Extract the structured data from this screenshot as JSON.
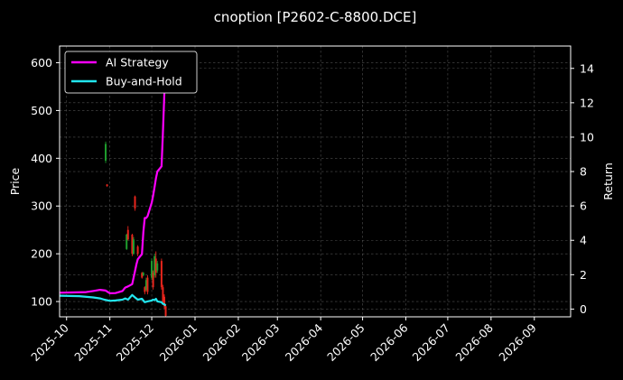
{
  "chart_data": {
    "type": "line",
    "title": "cnoption [P2602-C-8800.DCE]",
    "xlabel": "",
    "ylabel": "Price",
    "y2label": "Return",
    "xlim": [
      "2025-09-26",
      "2026-09-27"
    ],
    "ylim": [
      68,
      635
    ],
    "y2lim": [
      -0.45,
      15.3
    ],
    "y_ticks": [
      100,
      200,
      300,
      400,
      500,
      600
    ],
    "y2_ticks": [
      0,
      2,
      4,
      6,
      8,
      10,
      12,
      14
    ],
    "x_ticks": [
      "2025-10",
      "2025-11",
      "2025-12",
      "2026-01",
      "2026-02",
      "2026-03",
      "2026-04",
      "2026-05",
      "2026-06",
      "2026-07",
      "2026-08",
      "2026-09"
    ],
    "x_tick_dates": [
      "2025-10-01",
      "2025-11-01",
      "2025-12-01",
      "2026-01-01",
      "2026-02-01",
      "2026-03-01",
      "2026-04-01",
      "2026-05-01",
      "2026-06-01",
      "2026-07-01",
      "2026-08-01",
      "2026-09-01"
    ],
    "grid": true,
    "legend_position": "top-left",
    "colors": {
      "ai": "#ff00ff",
      "bh": "#22e5ee",
      "up": "#1f9e2e",
      "down": "#e8251c"
    },
    "series": [
      {
        "name": "AI Strategy",
        "axis": "right",
        "x": [
          "2025-09-26",
          "2025-10-05",
          "2025-10-15",
          "2025-10-20",
          "2025-10-25",
          "2025-10-29",
          "2025-11-01",
          "2025-11-05",
          "2025-11-10",
          "2025-11-12",
          "2025-11-14",
          "2025-11-17",
          "2025-11-19",
          "2025-11-20",
          "2025-11-21",
          "2025-11-24",
          "2025-11-25",
          "2025-11-26",
          "2025-11-27",
          "2025-11-28",
          "2025-12-01",
          "2025-12-02",
          "2025-12-03",
          "2025-12-04",
          "2025-12-05",
          "2025-12-08",
          "2025-12-09",
          "2025-12-10",
          "2025-12-11",
          "2025-12-12"
        ],
        "values": [
          0.95,
          0.97,
          0.99,
          1.05,
          1.12,
          1.08,
          0.92,
          0.93,
          1.05,
          1.25,
          1.32,
          1.45,
          2.2,
          2.6,
          2.9,
          3.2,
          4.5,
          5.3,
          5.3,
          5.4,
          6.2,
          6.6,
          7.1,
          7.6,
          8.0,
          8.3,
          10.2,
          12.5,
          13.8,
          14.9
        ]
      },
      {
        "name": "Buy-and-Hold",
        "axis": "right",
        "x": [
          "2025-09-26",
          "2025-10-10",
          "2025-10-20",
          "2025-10-25",
          "2025-10-28",
          "2025-11-01",
          "2025-11-05",
          "2025-11-10",
          "2025-11-12",
          "2025-11-14",
          "2025-11-17",
          "2025-11-19",
          "2025-11-21",
          "2025-11-24",
          "2025-11-26",
          "2025-11-28",
          "2025-12-01",
          "2025-12-02",
          "2025-12-03",
          "2025-12-04",
          "2025-12-05",
          "2025-12-08",
          "2025-12-09",
          "2025-12-10",
          "2025-12-11"
        ],
        "values": [
          0.78,
          0.75,
          0.68,
          0.62,
          0.55,
          0.48,
          0.5,
          0.55,
          0.62,
          0.55,
          0.82,
          0.68,
          0.55,
          0.6,
          0.4,
          0.45,
          0.5,
          0.55,
          0.52,
          0.6,
          0.45,
          0.4,
          0.3,
          0.28,
          0.2
        ]
      }
    ],
    "candles": [
      {
        "date": "2025-10-29",
        "open": 395,
        "close": 430,
        "high": 435,
        "low": 390
      },
      {
        "date": "2025-10-30",
        "open": 345,
        "close": 342,
        "high": 346,
        "low": 340
      },
      {
        "date": "2025-11-13",
        "open": 210,
        "close": 240,
        "high": 242,
        "low": 208
      },
      {
        "date": "2025-11-14",
        "open": 250,
        "close": 230,
        "high": 258,
        "low": 228
      },
      {
        "date": "2025-11-17",
        "open": 240,
        "close": 200,
        "high": 242,
        "low": 195
      },
      {
        "date": "2025-11-18",
        "open": 200,
        "close": 230,
        "high": 235,
        "low": 198
      },
      {
        "date": "2025-11-19",
        "open": 320,
        "close": 295,
        "high": 322,
        "low": 290
      },
      {
        "date": "2025-11-21",
        "open": 215,
        "close": 200,
        "high": 218,
        "low": 195
      },
      {
        "date": "2025-11-24",
        "open": 160,
        "close": 150,
        "high": 162,
        "low": 148
      },
      {
        "date": "2025-11-25",
        "open": 155,
        "close": 160,
        "high": 162,
        "low": 153
      },
      {
        "date": "2025-11-26",
        "open": 130,
        "close": 120,
        "high": 132,
        "low": 115
      },
      {
        "date": "2025-11-27",
        "open": 125,
        "close": 145,
        "high": 150,
        "low": 122
      },
      {
        "date": "2025-11-28",
        "open": 150,
        "close": 120,
        "high": 155,
        "low": 115
      },
      {
        "date": "2025-12-01",
        "open": 150,
        "close": 185,
        "high": 190,
        "low": 145
      },
      {
        "date": "2025-12-02",
        "open": 160,
        "close": 130,
        "high": 165,
        "low": 125
      },
      {
        "date": "2025-12-03",
        "open": 155,
        "close": 195,
        "high": 200,
        "low": 150
      },
      {
        "date": "2025-12-04",
        "open": 190,
        "close": 160,
        "high": 205,
        "low": 150
      },
      {
        "date": "2025-12-05",
        "open": 165,
        "close": 180,
        "high": 185,
        "low": 160
      },
      {
        "date": "2025-12-08",
        "open": 185,
        "close": 130,
        "high": 190,
        "low": 125
      },
      {
        "date": "2025-12-09",
        "open": 130,
        "close": 100,
        "high": 135,
        "low": 95
      },
      {
        "date": "2025-12-10",
        "open": 110,
        "close": 90,
        "high": 115,
        "low": 85
      },
      {
        "date": "2025-12-11",
        "open": 90,
        "close": 70,
        "high": 95,
        "low": 68
      }
    ]
  }
}
